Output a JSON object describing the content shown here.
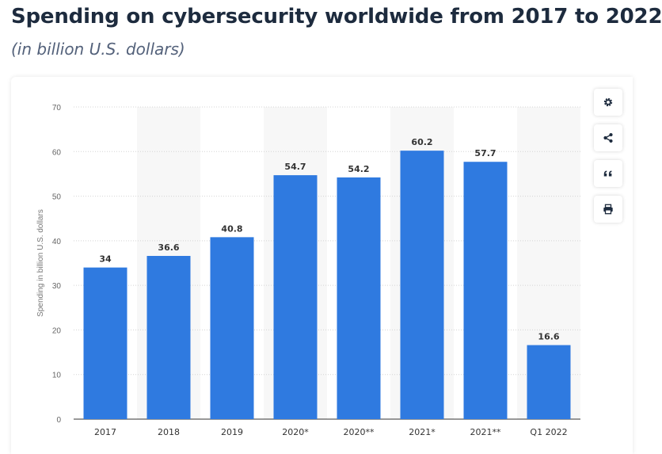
{
  "header": {
    "title": "Spending on cybersecurity worldwide from 2017 to 2022",
    "subtitle": "(in billion U.S. dollars)"
  },
  "toolbar": {
    "buttons": [
      {
        "icon": "gear-icon",
        "label": "Settings"
      },
      {
        "icon": "share-icon",
        "label": "Share"
      },
      {
        "icon": "quote-icon",
        "label": "Cite"
      },
      {
        "icon": "print-icon",
        "label": "Print"
      }
    ]
  },
  "colors": {
    "bar": "#2f7ae0",
    "band": "#f7f7f7",
    "grid": "#d4d4d4",
    "text": "#666666",
    "label": "#333333"
  },
  "chart_data": {
    "type": "bar",
    "title": "Spending on cybersecurity worldwide from 2017 to 2022",
    "subtitle": "(in billion U.S. dollars)",
    "xlabel": "",
    "ylabel": "Spending in billion U.S. dollars",
    "ylim": [
      0,
      70
    ],
    "yticks": [
      0,
      10,
      20,
      30,
      40,
      50,
      60,
      70
    ],
    "categories": [
      "2017",
      "2018",
      "2019",
      "2020*",
      "2020**",
      "2021*",
      "2021**",
      "Q1 2022"
    ],
    "values": [
      34,
      36.6,
      40.8,
      54.7,
      54.2,
      60.2,
      57.7,
      16.6
    ],
    "data_labels": [
      "34",
      "36.6",
      "40.8",
      "54.7",
      "54.2",
      "60.2",
      "57.7",
      "16.6"
    ],
    "grid": true,
    "legend": "none"
  }
}
